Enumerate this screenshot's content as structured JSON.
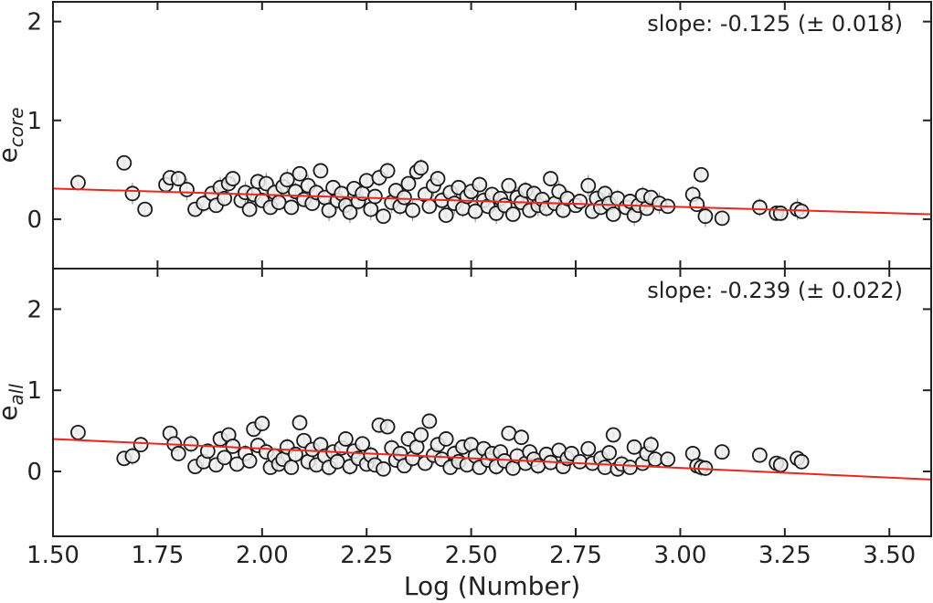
{
  "chart_data": {
    "type": "scatter",
    "xlabel": "Log (Number)",
    "xlim": [
      1.5,
      3.6
    ],
    "xticks": [
      "1.50",
      "1.75",
      "2.00",
      "2.25",
      "2.50",
      "2.75",
      "3.00",
      "3.25",
      "3.50"
    ],
    "fit_color": "#e8281e",
    "marker_face": "#eeeeee",
    "marker_edge": "#1a1a1a",
    "panels": [
      {
        "ylabel_main": "e",
        "ylabel_sub": "core",
        "ylim": [
          -0.5,
          2.2
        ],
        "yticks": [
          "0",
          "1",
          "2"
        ],
        "annotation": "slope: -0.125 (± 0.018)",
        "fit": {
          "x": [
            1.5,
            3.6
          ],
          "y": [
            0.31,
            0.05
          ]
        },
        "points": [
          [
            1.56,
            0.37
          ],
          [
            1.67,
            0.57
          ],
          [
            1.69,
            0.26
          ],
          [
            1.72,
            0.1
          ],
          [
            1.77,
            0.35
          ],
          [
            1.78,
            0.42
          ],
          [
            1.8,
            0.41
          ],
          [
            1.82,
            0.3
          ],
          [
            1.84,
            0.1
          ],
          [
            1.86,
            0.16
          ],
          [
            1.88,
            0.26
          ],
          [
            1.89,
            0.14
          ],
          [
            1.9,
            0.32
          ],
          [
            1.91,
            0.21
          ],
          [
            1.92,
            0.36
          ],
          [
            1.93,
            0.41
          ],
          [
            1.95,
            0.19
          ],
          [
            1.96,
            0.27
          ],
          [
            1.97,
            0.1
          ],
          [
            1.98,
            0.25
          ],
          [
            1.99,
            0.38
          ],
          [
            2.0,
            0.19
          ],
          [
            2.01,
            0.36
          ],
          [
            2.02,
            0.12
          ],
          [
            2.03,
            0.27
          ],
          [
            2.04,
            0.17
          ],
          [
            2.05,
            0.33
          ],
          [
            2.06,
            0.4
          ],
          [
            2.07,
            0.12
          ],
          [
            2.08,
            0.28
          ],
          [
            2.09,
            0.46
          ],
          [
            2.1,
            0.2
          ],
          [
            2.11,
            0.34
          ],
          [
            2.12,
            0.16
          ],
          [
            2.13,
            0.27
          ],
          [
            2.14,
            0.49
          ],
          [
            2.15,
            0.22
          ],
          [
            2.16,
            0.09
          ],
          [
            2.17,
            0.32
          ],
          [
            2.18,
            0.19
          ],
          [
            2.19,
            0.26
          ],
          [
            2.2,
            0.14
          ],
          [
            2.21,
            0.07
          ],
          [
            2.22,
            0.31
          ],
          [
            2.23,
            0.18
          ],
          [
            2.24,
            0.26
          ],
          [
            2.25,
            0.39
          ],
          [
            2.26,
            0.1
          ],
          [
            2.27,
            0.23
          ],
          [
            2.28,
            0.42
          ],
          [
            2.29,
            0.03
          ],
          [
            2.3,
            0.49
          ],
          [
            2.31,
            0.17
          ],
          [
            2.32,
            0.29
          ],
          [
            2.33,
            0.13
          ],
          [
            2.34,
            0.22
          ],
          [
            2.35,
            0.36
          ],
          [
            2.36,
            0.09
          ],
          [
            2.37,
            0.48
          ],
          [
            2.38,
            0.52
          ],
          [
            2.39,
            0.25
          ],
          [
            2.4,
            0.13
          ],
          [
            2.41,
            0.34
          ],
          [
            2.42,
            0.41
          ],
          [
            2.43,
            0.19
          ],
          [
            2.44,
            0.04
          ],
          [
            2.45,
            0.27
          ],
          [
            2.46,
            0.16
          ],
          [
            2.47,
            0.32
          ],
          [
            2.48,
            0.11
          ],
          [
            2.49,
            0.23
          ],
          [
            2.5,
            0.28
          ],
          [
            2.51,
            0.08
          ],
          [
            2.52,
            0.35
          ],
          [
            2.53,
            0.19
          ],
          [
            2.54,
            0.13
          ],
          [
            2.55,
            0.25
          ],
          [
            2.56,
            0.06
          ],
          [
            2.57,
            0.21
          ],
          [
            2.58,
            0.14
          ],
          [
            2.59,
            0.34
          ],
          [
            2.6,
            0.05
          ],
          [
            2.61,
            0.22
          ],
          [
            2.62,
            0.17
          ],
          [
            2.63,
            0.29
          ],
          [
            2.64,
            0.09
          ],
          [
            2.65,
            0.26
          ],
          [
            2.66,
            0.14
          ],
          [
            2.67,
            0.2
          ],
          [
            2.68,
            0.11
          ],
          [
            2.69,
            0.41
          ],
          [
            2.7,
            0.16
          ],
          [
            2.71,
            0.28
          ],
          [
            2.72,
            0.09
          ],
          [
            2.73,
            0.21
          ],
          [
            2.75,
            0.14
          ],
          [
            2.76,
            0.18
          ],
          [
            2.78,
            0.34
          ],
          [
            2.79,
            0.08
          ],
          [
            2.8,
            0.21
          ],
          [
            2.81,
            0.12
          ],
          [
            2.82,
            0.26
          ],
          [
            2.83,
            0.16
          ],
          [
            2.84,
            0.05
          ],
          [
            2.85,
            0.21
          ],
          [
            2.87,
            0.12
          ],
          [
            2.88,
            0.18
          ],
          [
            2.89,
            0.04
          ],
          [
            2.9,
            0.14
          ],
          [
            2.91,
            0.24
          ],
          [
            2.92,
            0.11
          ],
          [
            2.93,
            0.22
          ],
          [
            2.95,
            0.16
          ],
          [
            2.97,
            0.13
          ],
          [
            3.03,
            0.25
          ],
          [
            3.04,
            0.15
          ],
          [
            3.05,
            0.45
          ],
          [
            3.06,
            0.03
          ],
          [
            3.1,
            0.01
          ],
          [
            3.19,
            0.12
          ],
          [
            3.23,
            0.06
          ],
          [
            3.24,
            0.06
          ],
          [
            3.28,
            0.1
          ],
          [
            3.29,
            0.08
          ]
        ]
      },
      {
        "ylabel_main": "e",
        "ylabel_sub": "all",
        "ylim": [
          -0.8,
          2.5
        ],
        "yticks": [
          "0",
          "1",
          "2"
        ],
        "annotation": "slope: -0.239 (± 0.022)",
        "fit": {
          "x": [
            1.5,
            3.6
          ],
          "y": [
            0.4,
            -0.1
          ]
        },
        "points": [
          [
            1.56,
            0.48
          ],
          [
            1.67,
            0.16
          ],
          [
            1.69,
            0.19
          ],
          [
            1.71,
            0.33
          ],
          [
            1.78,
            0.47
          ],
          [
            1.79,
            0.34
          ],
          [
            1.8,
            0.22
          ],
          [
            1.83,
            0.34
          ],
          [
            1.84,
            0.06
          ],
          [
            1.86,
            0.12
          ],
          [
            1.87,
            0.25
          ],
          [
            1.89,
            0.08
          ],
          [
            1.9,
            0.4
          ],
          [
            1.91,
            0.17
          ],
          [
            1.92,
            0.45
          ],
          [
            1.93,
            0.31
          ],
          [
            1.94,
            0.09
          ],
          [
            1.96,
            0.22
          ],
          [
            1.97,
            0.13
          ],
          [
            1.98,
            0.52
          ],
          [
            1.99,
            0.32
          ],
          [
            2.0,
            0.59
          ],
          [
            2.01,
            0.24
          ],
          [
            2.02,
            0.05
          ],
          [
            2.03,
            0.19
          ],
          [
            2.04,
            0.09
          ],
          [
            2.05,
            0.15
          ],
          [
            2.06,
            0.3
          ],
          [
            2.07,
            0.05
          ],
          [
            2.08,
            0.21
          ],
          [
            2.09,
            0.6
          ],
          [
            2.1,
            0.38
          ],
          [
            2.11,
            0.12
          ],
          [
            2.12,
            0.27
          ],
          [
            2.13,
            0.08
          ],
          [
            2.14,
            0.33
          ],
          [
            2.15,
            0.19
          ],
          [
            2.16,
            0.05
          ],
          [
            2.17,
            0.24
          ],
          [
            2.18,
            0.12
          ],
          [
            2.19,
            0.29
          ],
          [
            2.2,
            0.4
          ],
          [
            2.21,
            0.06
          ],
          [
            2.22,
            0.25
          ],
          [
            2.23,
            0.16
          ],
          [
            2.24,
            0.34
          ],
          [
            2.25,
            0.09
          ],
          [
            2.26,
            0.2
          ],
          [
            2.27,
            0.08
          ],
          [
            2.28,
            0.57
          ],
          [
            2.29,
            0.03
          ],
          [
            2.3,
            0.55
          ],
          [
            2.31,
            0.29
          ],
          [
            2.32,
            0.14
          ],
          [
            2.33,
            0.22
          ],
          [
            2.34,
            0.07
          ],
          [
            2.35,
            0.4
          ],
          [
            2.36,
            0.16
          ],
          [
            2.37,
            0.3
          ],
          [
            2.38,
            0.45
          ],
          [
            2.39,
            0.1
          ],
          [
            2.4,
            0.62
          ],
          [
            2.41,
            0.2
          ],
          [
            2.42,
            0.33
          ],
          [
            2.43,
            0.15
          ],
          [
            2.44,
            0.4
          ],
          [
            2.45,
            0.05
          ],
          [
            2.46,
            0.22
          ],
          [
            2.47,
            0.12
          ],
          [
            2.48,
            0.3
          ],
          [
            2.49,
            0.08
          ],
          [
            2.5,
            0.33
          ],
          [
            2.51,
            0.19
          ],
          [
            2.52,
            0.05
          ],
          [
            2.53,
            0.28
          ],
          [
            2.54,
            0.14
          ],
          [
            2.55,
            0.22
          ],
          [
            2.56,
            0.06
          ],
          [
            2.57,
            0.24
          ],
          [
            2.58,
            0.13
          ],
          [
            2.59,
            0.47
          ],
          [
            2.6,
            0.04
          ],
          [
            2.61,
            0.19
          ],
          [
            2.62,
            0.42
          ],
          [
            2.63,
            0.1
          ],
          [
            2.64,
            0.24
          ],
          [
            2.65,
            0.15
          ],
          [
            2.66,
            0.07
          ],
          [
            2.68,
            0.21
          ],
          [
            2.69,
            0.11
          ],
          [
            2.71,
            0.26
          ],
          [
            2.72,
            0.06
          ],
          [
            2.73,
            0.16
          ],
          [
            2.74,
            0.22
          ],
          [
            2.76,
            0.12
          ],
          [
            2.78,
            0.28
          ],
          [
            2.79,
            0.1
          ],
          [
            2.81,
            0.16
          ],
          [
            2.82,
            0.05
          ],
          [
            2.83,
            0.23
          ],
          [
            2.84,
            0.45
          ],
          [
            2.85,
            0.03
          ],
          [
            2.86,
            0.09
          ],
          [
            2.88,
            0.05
          ],
          [
            2.89,
            0.3
          ],
          [
            2.91,
            0.1
          ],
          [
            2.92,
            0.22
          ],
          [
            2.93,
            0.33
          ],
          [
            2.94,
            0.15
          ],
          [
            2.97,
            0.15
          ],
          [
            3.03,
            0.22
          ],
          [
            3.04,
            0.07
          ],
          [
            3.05,
            0.05
          ],
          [
            3.06,
            0.04
          ],
          [
            3.1,
            0.24
          ],
          [
            3.19,
            0.2
          ],
          [
            3.23,
            0.1
          ],
          [
            3.24,
            0.08
          ],
          [
            3.28,
            0.16
          ],
          [
            3.29,
            0.12
          ]
        ]
      }
    ]
  }
}
